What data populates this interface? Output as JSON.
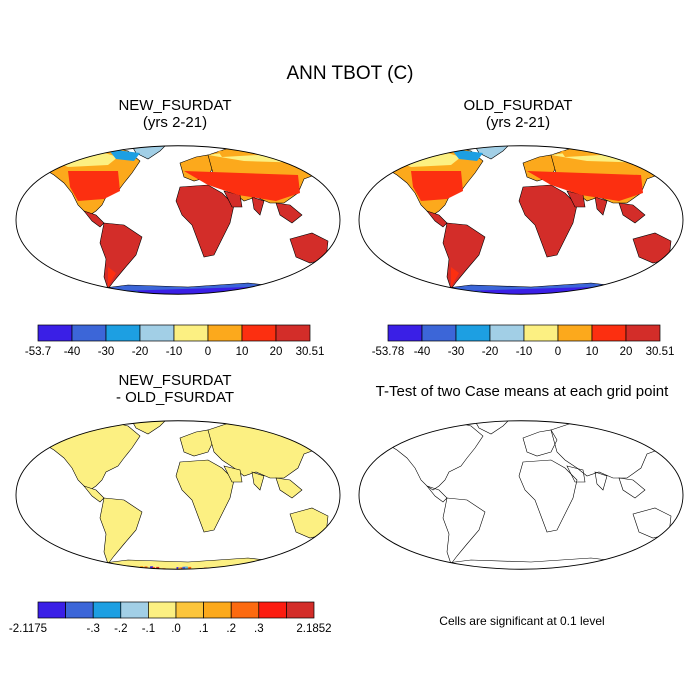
{
  "title": "ANN TBOT (C)",
  "panels": [
    {
      "id": "new",
      "title_line1": "NEW_FSURDAT",
      "title_line2": "(yrs 2-21)",
      "kind": "temp"
    },
    {
      "id": "old",
      "title_line1": "OLD_FSURDAT",
      "title_line2": "(yrs 2-21)",
      "kind": "temp"
    },
    {
      "id": "diff",
      "title_line1": "NEW_FSURDAT",
      "title_line2": "- OLD_FSURDAT",
      "kind": "diff"
    },
    {
      "id": "ttest",
      "title_line1": "T-Test of two Case means at each grid point",
      "kind": "ttest"
    }
  ],
  "significance_note": "Cells are significant at 0.1 level",
  "colorbars": [
    {
      "id": "cb-new",
      "colors": [
        "#3a1fe6",
        "#3c66d8",
        "#1d9fe2",
        "#a2cfe6",
        "#fcf082",
        "#fca91c",
        "#fc2f10",
        "#d32d29"
      ],
      "labels": [
        "-53.7",
        "-40",
        "-30",
        "-20",
        "-10",
        "0",
        "10",
        "20",
        "30.51"
      ]
    },
    {
      "id": "cb-old",
      "colors": [
        "#3a1fe6",
        "#3c66d8",
        "#1d9fe2",
        "#a2cfe6",
        "#fcf082",
        "#fca91c",
        "#fc2f10",
        "#d32d29"
      ],
      "labels": [
        "-53.78",
        "-40",
        "-30",
        "-20",
        "-10",
        "0",
        "10",
        "20",
        "30.51"
      ]
    },
    {
      "id": "cb-diff",
      "colors": [
        "#3a1fe6",
        "#3c66d8",
        "#1d9fe2",
        "#a2cfe6",
        "#fcf082",
        "#fcc53c",
        "#fca91c",
        "#fc6a10",
        "#fc1c10",
        "#d32d29"
      ],
      "labels": [
        "-2.1175",
        "",
        "-.3",
        "-.2",
        "-.1",
        ".0",
        ".1",
        ".2",
        ".3",
        "",
        "2.1852"
      ]
    }
  ],
  "chart_data": {
    "type": "map",
    "title": "ANN TBOT (C)",
    "variable": "TBOT",
    "units": "C",
    "projection": "Robinson",
    "maps": [
      {
        "name": "NEW_FSURDAT (yrs 2-21)",
        "min": -53.7,
        "max": 30.51,
        "levels": [
          -40,
          -30,
          -20,
          -10,
          0,
          10,
          20
        ]
      },
      {
        "name": "OLD_FSURDAT (yrs 2-21)",
        "min": -53.78,
        "max": 30.51,
        "levels": [
          -40,
          -30,
          -20,
          -10,
          0,
          10,
          20
        ]
      },
      {
        "name": "NEW_FSURDAT - OLD_FSURDAT",
        "min": -2.1175,
        "max": 2.1852,
        "levels": [
          -0.3,
          -0.2,
          -0.1,
          0.0,
          0.1,
          0.2,
          0.3
        ]
      },
      {
        "name": "T-Test of two Case means at each grid point",
        "significance_level": 0.1
      }
    ]
  }
}
